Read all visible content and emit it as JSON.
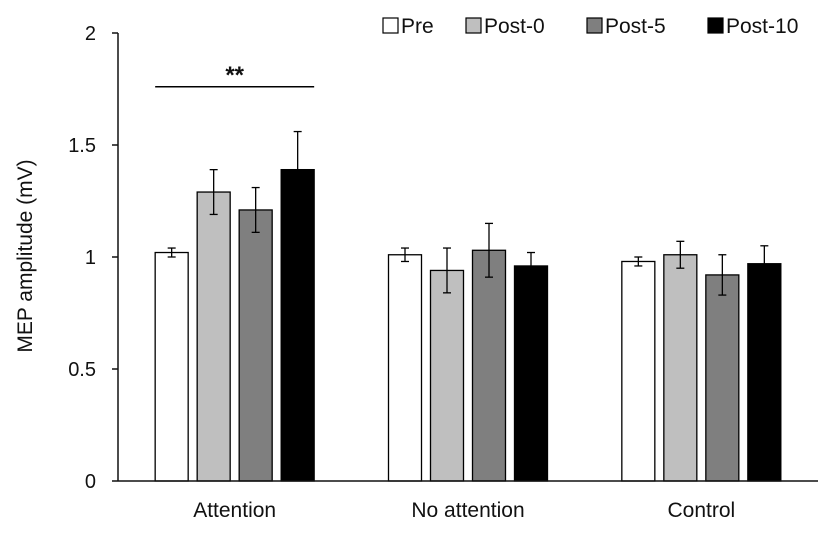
{
  "chart_data": {
    "type": "bar",
    "title": "",
    "xlabel": "",
    "ylabel": "MEP amplitude (mV)",
    "ylim": [
      0,
      2
    ],
    "yticks": [
      0,
      0.5,
      1,
      1.5,
      2
    ],
    "ytick_labels": [
      "0",
      "0.5",
      "1",
      "1.5",
      "2"
    ],
    "grid": false,
    "legend_position": "top-right",
    "categories": [
      "Attention",
      "No attention",
      "Control"
    ],
    "series": [
      {
        "name": "Pre",
        "color": "#ffffff",
        "values": [
          1.02,
          1.01,
          0.98
        ],
        "errors": [
          0.02,
          0.03,
          0.02
        ]
      },
      {
        "name": "Post-0",
        "color": "#bfbfbf",
        "values": [
          1.29,
          0.94,
          1.01
        ],
        "errors": [
          0.1,
          0.1,
          0.06
        ]
      },
      {
        "name": "Post-5",
        "color": "#7f7f7f",
        "values": [
          1.21,
          1.03,
          0.92
        ],
        "errors": [
          0.1,
          0.12,
          0.09
        ]
      },
      {
        "name": "Post-10",
        "color": "#000000",
        "values": [
          1.39,
          0.96,
          0.97
        ],
        "errors": [
          0.17,
          0.06,
          0.08
        ]
      }
    ],
    "annotations": [
      {
        "text": "**",
        "category": "Attention",
        "from_series": 0,
        "to_series": 3,
        "level": 1.76
      }
    ]
  }
}
